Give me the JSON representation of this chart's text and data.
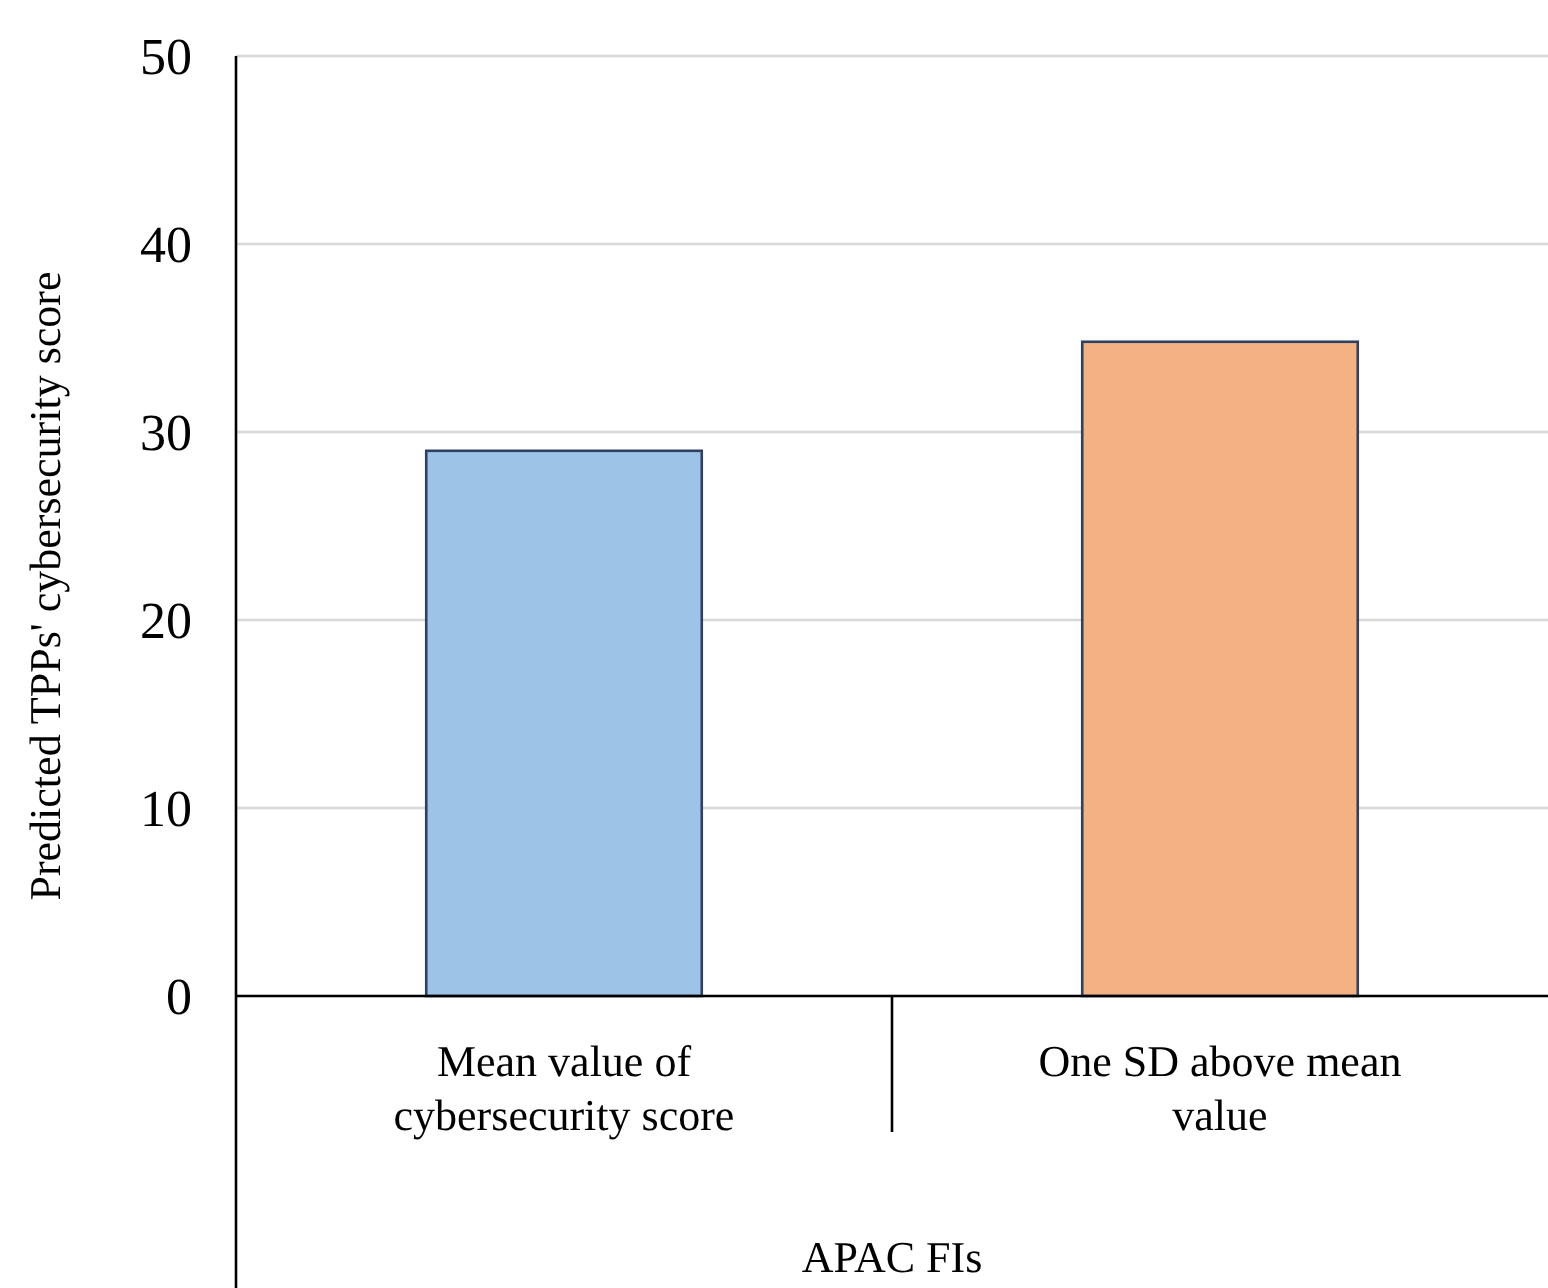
{
  "chart_data": {
    "type": "bar",
    "categories": [
      "Mean value of cybersecurity score",
      "One SD above mean value"
    ],
    "values": [
      29,
      34.8
    ],
    "colors": [
      "#9dc3e6",
      "#f4b183"
    ],
    "xlabel": "APAC FIs",
    "ylabel": "Predicted TPPs' cybersecurity score",
    "ylim": [
      0,
      50
    ],
    "yticks": [
      0,
      10,
      20,
      30,
      40,
      50
    ],
    "grid": "y"
  }
}
